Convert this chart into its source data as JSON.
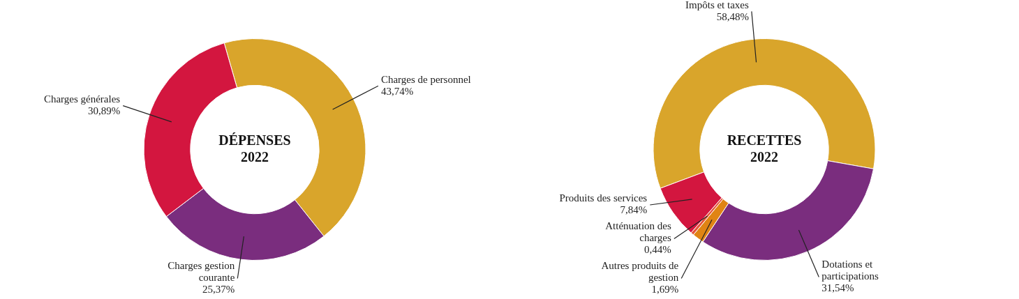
{
  "chart_data": [
    {
      "type": "donut",
      "title": "DÉPENSES\n2022",
      "categories": [
        "Charges de personnel",
        "Charges gestion courante",
        "Charges générales"
      ],
      "values": [
        43.74,
        25.37,
        30.89
      ],
      "colors": [
        "#d9a52b",
        "#7a2d7e",
        "#d3163f"
      ],
      "value_labels": [
        "43,74%",
        "25,37%",
        "30,89%"
      ]
    },
    {
      "type": "donut",
      "title": "RECETTES\n2022",
      "categories": [
        "Impôts et taxes",
        "Dotations et participations",
        "Autres produits de gestion",
        "Atténuation des charges",
        "Produits des services"
      ],
      "values": [
        58.48,
        31.54,
        1.69,
        0.44,
        7.84
      ],
      "colors": [
        "#d9a52b",
        "#7a2d7e",
        "#e08414",
        "#e6553a",
        "#d3163f"
      ],
      "value_labels": [
        "58,48%",
        "31,54%",
        "1,69%",
        "0,44%",
        "7,84%"
      ]
    }
  ]
}
